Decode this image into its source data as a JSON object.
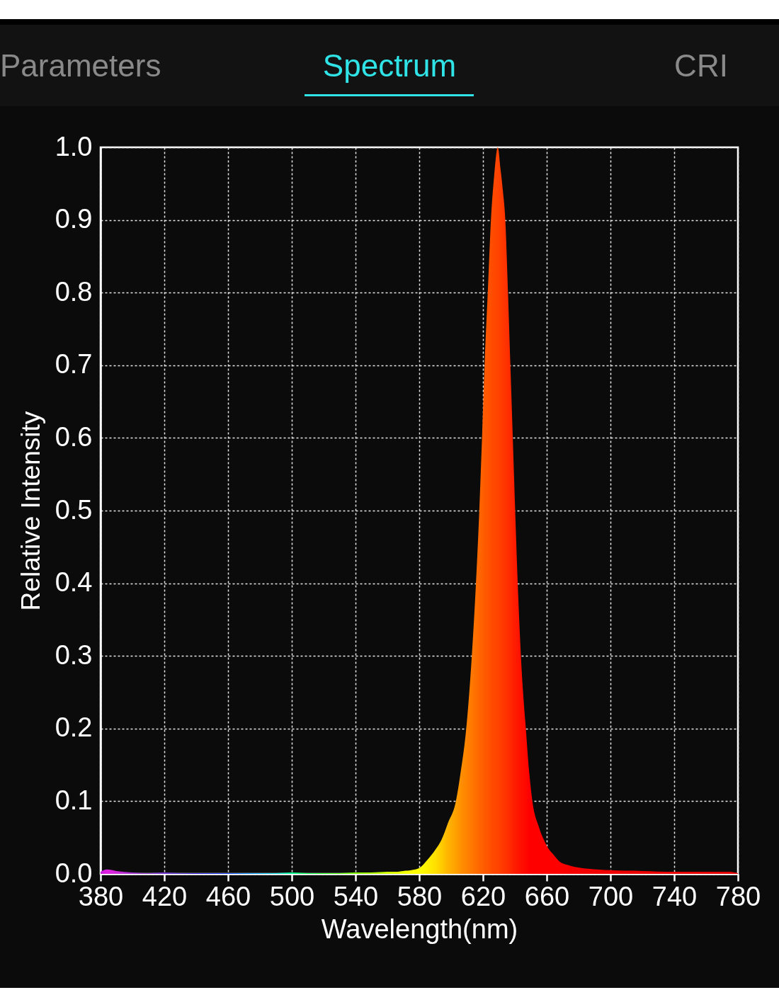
{
  "chart_data": {
    "type": "area",
    "title": "Spectrum",
    "annotations": [
      "Parameters",
      "CRI"
    ],
    "xlabel": "Wavelength(nm)",
    "ylabel": "Relative Intensity",
    "x": [
      380,
      384,
      390,
      400,
      410,
      420,
      430,
      440,
      450,
      460,
      470,
      480,
      490,
      500,
      510,
      520,
      530,
      540,
      550,
      560,
      565,
      570,
      575,
      580,
      585,
      590,
      594,
      598,
      603,
      606,
      609.5,
      613,
      615.6,
      617.7,
      619.4,
      621,
      623,
      625,
      627,
      629.3,
      631,
      632.5,
      634,
      635.7,
      637.2,
      638.7,
      640.2,
      641.8,
      643.8,
      646.9,
      649,
      651,
      655,
      658.4,
      661,
      664.4,
      668,
      675,
      686,
      700,
      720,
      740,
      760,
      775,
      780
    ],
    "values": [
      0.003,
      0.006,
      0.004,
      0.002,
      0.001,
      0.002,
      0.001,
      0.001,
      0.001,
      0.001,
      0.001,
      0.001,
      0.001,
      0.002,
      0.001,
      0.001,
      0.001,
      0.002,
      0.002,
      0.003,
      0.003,
      0.004,
      0.005,
      0.008,
      0.019,
      0.033,
      0.047,
      0.07,
      0.1,
      0.14,
      0.2,
      0.3,
      0.4,
      0.5,
      0.6,
      0.7,
      0.8,
      0.9,
      0.96,
      1.0,
      0.97,
      0.94,
      0.9,
      0.8,
      0.7,
      0.6,
      0.5,
      0.4,
      0.3,
      0.2,
      0.14,
      0.1,
      0.065,
      0.046,
      0.035,
      0.026,
      0.017,
      0.011,
      0.007,
      0.005,
      0.004,
      0.003,
      0.003,
      0.003,
      0.001
    ],
    "colors": [
      "#c818e0",
      "#e020e0",
      "#d028d8",
      "#a030d0",
      "#8030d0",
      "#7030d0",
      "#5030d8",
      "#3020e0",
      "#2030f0",
      "#1040ff",
      "#0080ff",
      "#00b0ff",
      "#00e0e0",
      "#00ff90",
      "#00ff50",
      "#20ff20",
      "#50ff00",
      "#80ff00",
      "#a8ff00",
      "#d0ff00",
      "#e0ff00",
      "#f0ff00",
      "#ffff00",
      "#ffff00",
      "#fff000",
      "#ffe000",
      "#ffcc00",
      "#ffb400",
      "#ffa000",
      "#ff9000",
      "#ff8400",
      "#ff7800",
      "#ff6e00",
      "#ff6600",
      "#ff6000",
      "#ff5a00",
      "#ff5400",
      "#ff4e00",
      "#ff4800",
      "#ff4400",
      "#ff3e00",
      "#ff3800",
      "#ff3400",
      "#ff2e00",
      "#ff2800",
      "#ff2200",
      "#ff1c00",
      "#ff1600",
      "#ff1000",
      "#ff0800",
      "#ff0000",
      "#ff0000",
      "#ff0000",
      "#ff0000",
      "#ff0000",
      "#ff0000",
      "#ff0000",
      "#f80000",
      "#f40000",
      "#f00000",
      "#ec0000",
      "#e80000",
      "#e40000",
      "#e00000",
      "#e00000"
    ],
    "xlim": [
      380,
      780
    ],
    "xticks": [
      380,
      420,
      460,
      500,
      540,
      580,
      620,
      660,
      700,
      740,
      780
    ],
    "ylim": [
      0,
      1
    ],
    "yticks": [
      {
        "value": 0,
        "label": "0.0"
      },
      0.1,
      0.2,
      0.3,
      0.4,
      0.5,
      0.6,
      0.7,
      0.8,
      0.9,
      {
        "value": 1,
        "label": "1.0"
      }
    ],
    "grid": true
  }
}
